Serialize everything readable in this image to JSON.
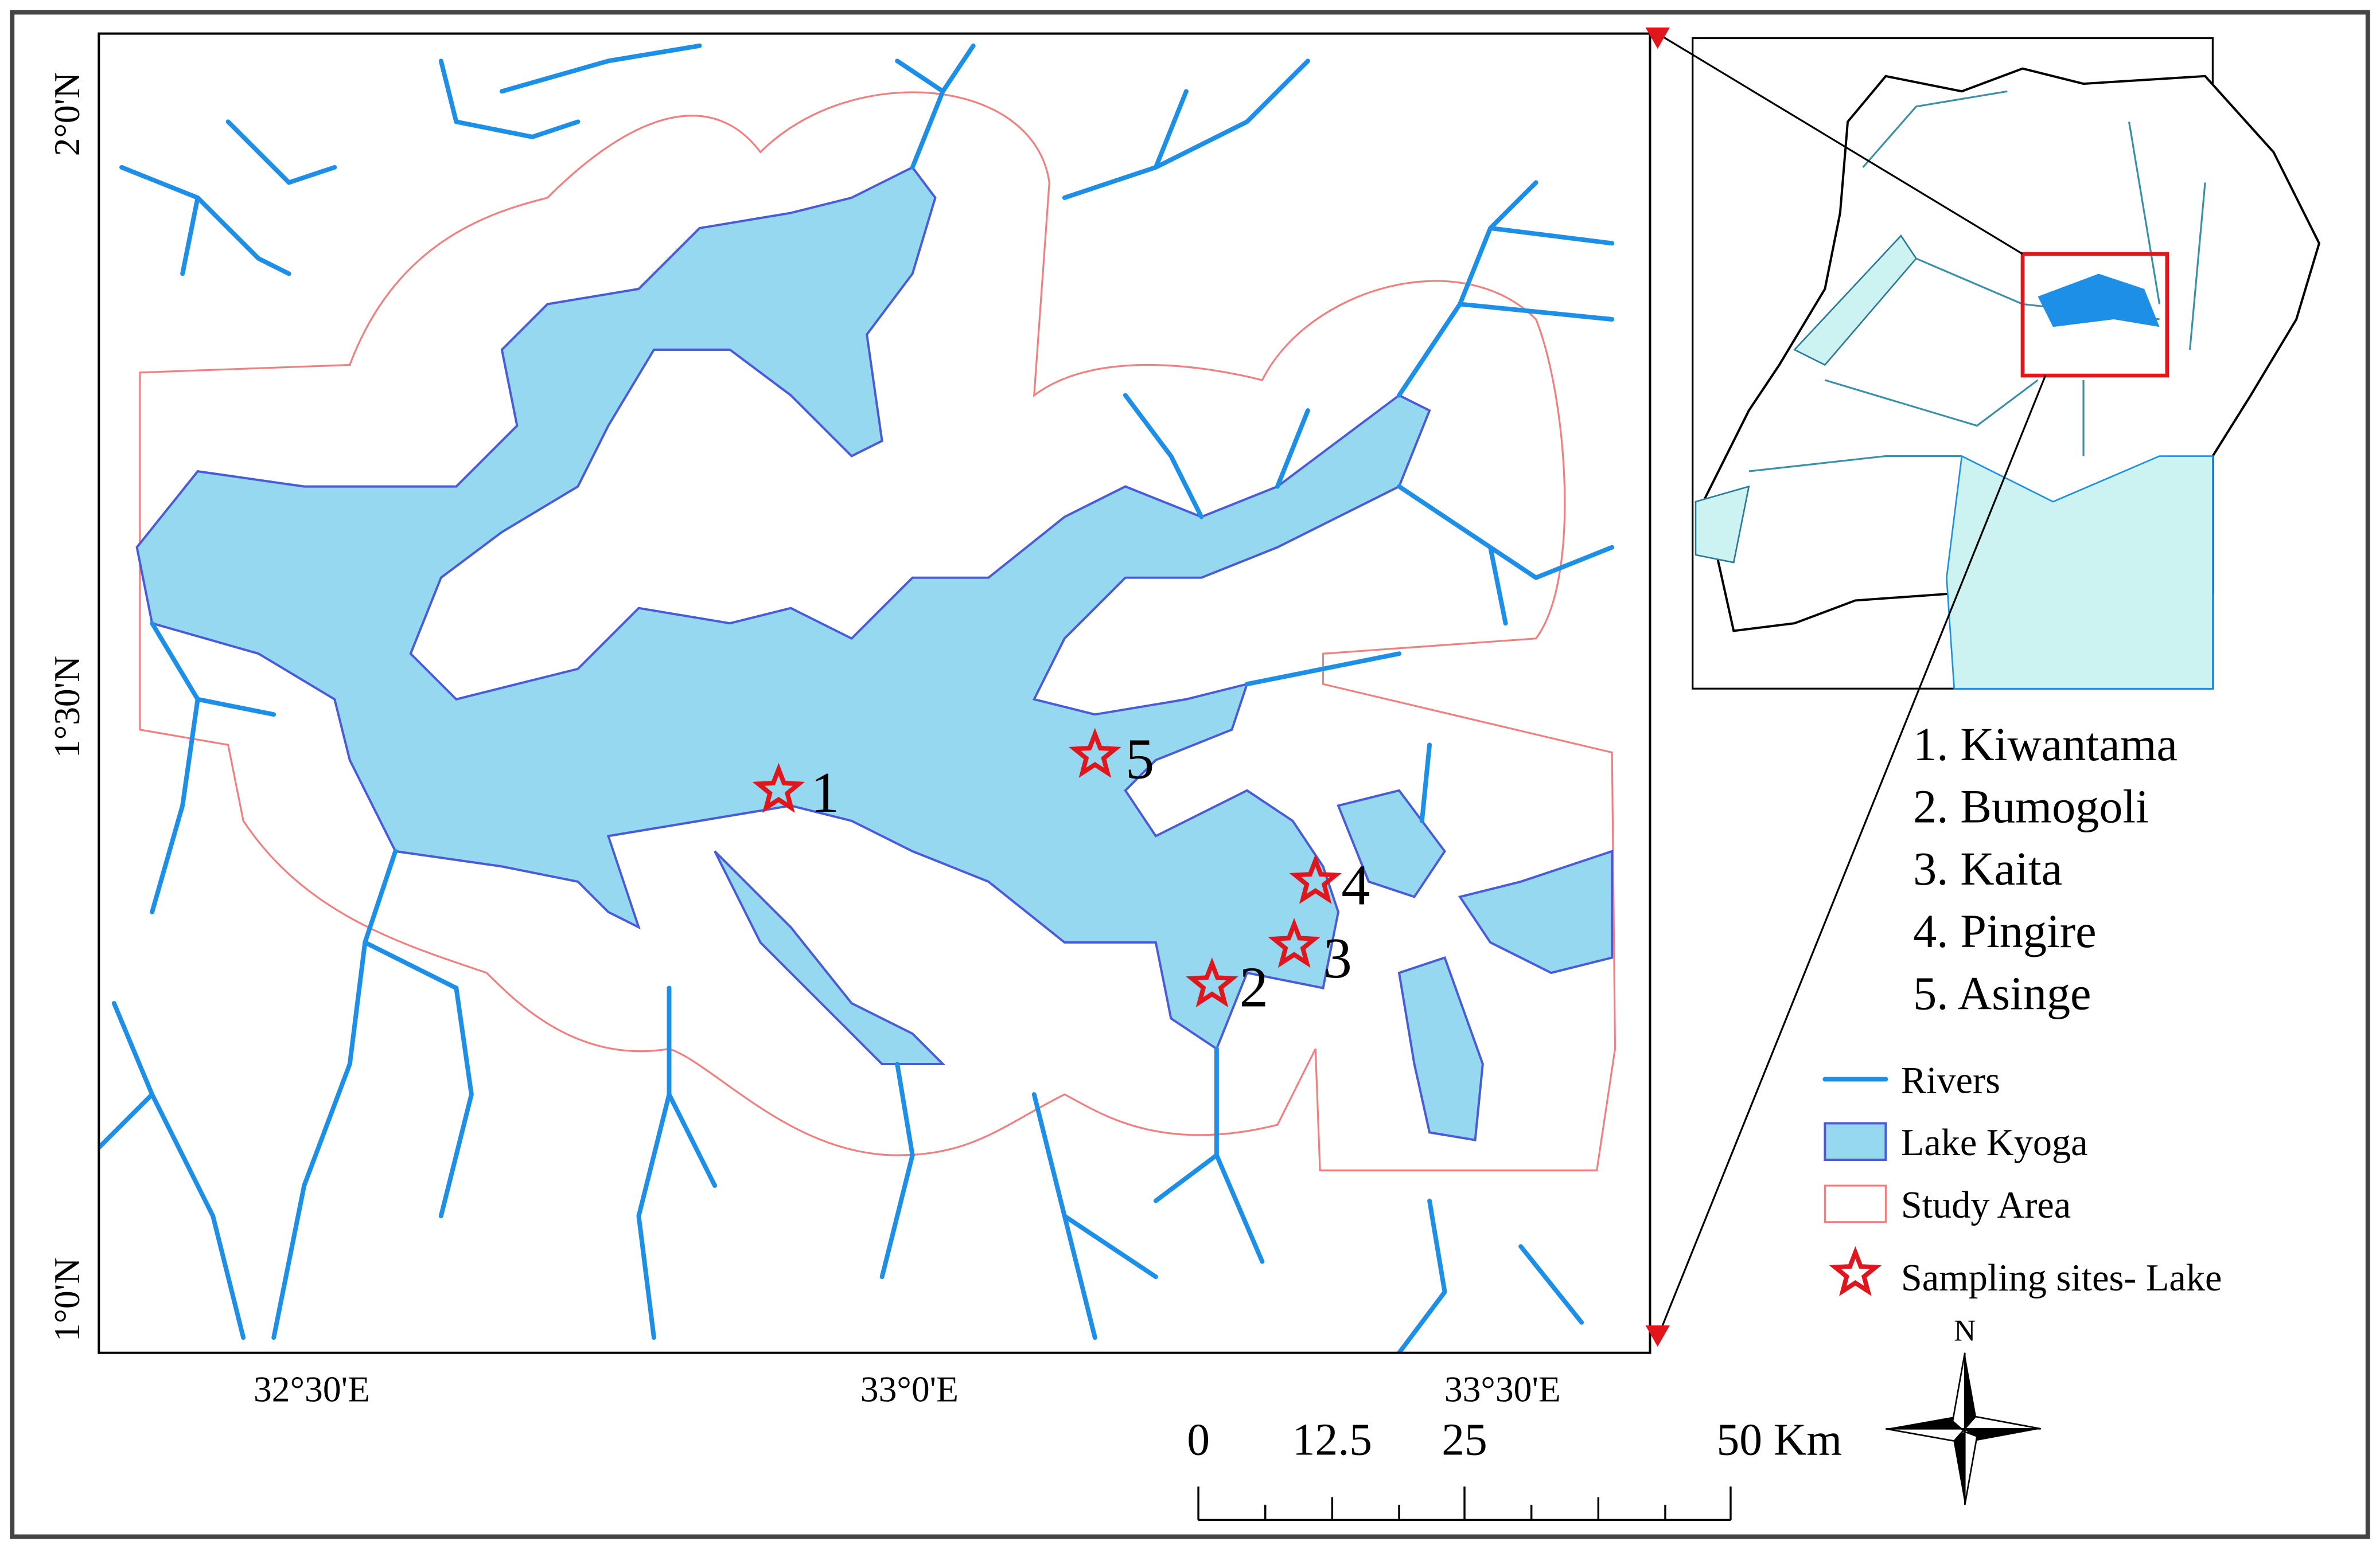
{
  "map": {
    "lat_labels": [
      "2°0'N",
      "1°30'N",
      "1°0'N"
    ],
    "lon_labels": [
      "32°30'E",
      "33°0'E",
      "33°30'E"
    ],
    "sites": [
      {
        "label": "1"
      },
      {
        "label": "2"
      },
      {
        "label": "3"
      },
      {
        "label": "4"
      },
      {
        "label": "5"
      }
    ],
    "site_list": [
      "1. Kiwantama",
      "2. Bumogoli",
      "3. Kaita",
      "4. Pingire",
      "5. Asinge"
    ],
    "legend": [
      "Rivers",
      "Lake Kyoga",
      "Study Area",
      "Sampling sites- Lake"
    ],
    "scale_bar": [
      "0",
      "12.5",
      "25",
      "50 Km"
    ],
    "north": "N"
  }
}
